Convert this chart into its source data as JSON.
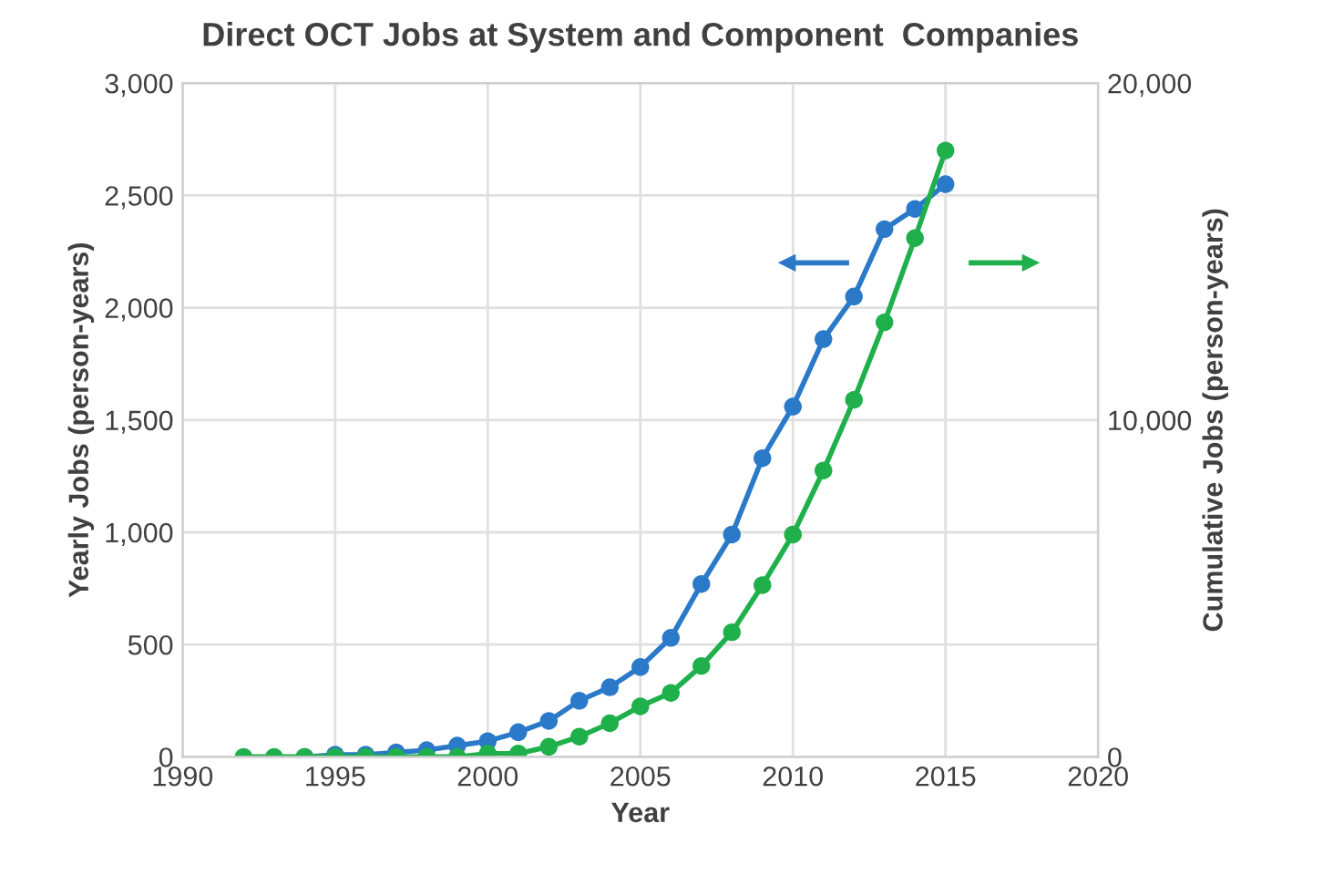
{
  "chart_data": {
    "type": "line",
    "title": "Direct OCT Jobs at System and Component  Companies",
    "xlabel": "Year",
    "ylabel": "Yearly Jobs (person-years)",
    "y2label": "Cumulative Jobs (person-years)",
    "x": [
      1992,
      1993,
      1994,
      1995,
      1996,
      1997,
      1998,
      1999,
      2000,
      2001,
      2002,
      2003,
      2004,
      2005,
      2006,
      2007,
      2008,
      2009,
      2010,
      2011,
      2012,
      2013,
      2014,
      2015
    ],
    "series": [
      {
        "color": "#2a7ac9",
        "values": [
          null,
          null,
          0,
          10,
          10,
          20,
          30,
          50,
          70,
          110,
          160,
          250,
          310,
          400,
          530,
          770,
          990,
          1330,
          1560,
          1860,
          2050,
          2350,
          2440,
          2550
        ]
      },
      {
        "color": "#1fb04b",
        "axis": "y2",
        "values": [
          0,
          0,
          0,
          0,
          0,
          0,
          0,
          0,
          100,
          100,
          300,
          600,
          1000,
          1500,
          1900,
          2700,
          3700,
          5100,
          6600,
          8500,
          10600,
          12900,
          15400,
          18000
        ]
      }
    ],
    "xlim": [
      1990,
      2020
    ],
    "xticks": [
      1990,
      1995,
      2000,
      2005,
      2010,
      2015,
      2020
    ],
    "ylim": [
      0,
      3000
    ],
    "yticks": [
      {
        "value": 0,
        "label": "0"
      },
      {
        "value": 500,
        "label": "500"
      },
      {
        "value": 1000,
        "label": "1,000"
      },
      {
        "value": 1500,
        "label": "1,500"
      },
      {
        "value": 2000,
        "label": "2,000"
      },
      {
        "value": 2500,
        "label": "2,500"
      },
      {
        "value": 3000,
        "label": "3,000"
      }
    ],
    "y2lim": [
      0,
      20000
    ],
    "y2ticks": [
      {
        "value": 0,
        "label": "0"
      },
      {
        "value": 10000,
        "label": "10,000"
      },
      {
        "value": 20000,
        "label": "20,000"
      }
    ],
    "grid": true,
    "marker": "circle",
    "line_style": "solid",
    "legend": false
  }
}
